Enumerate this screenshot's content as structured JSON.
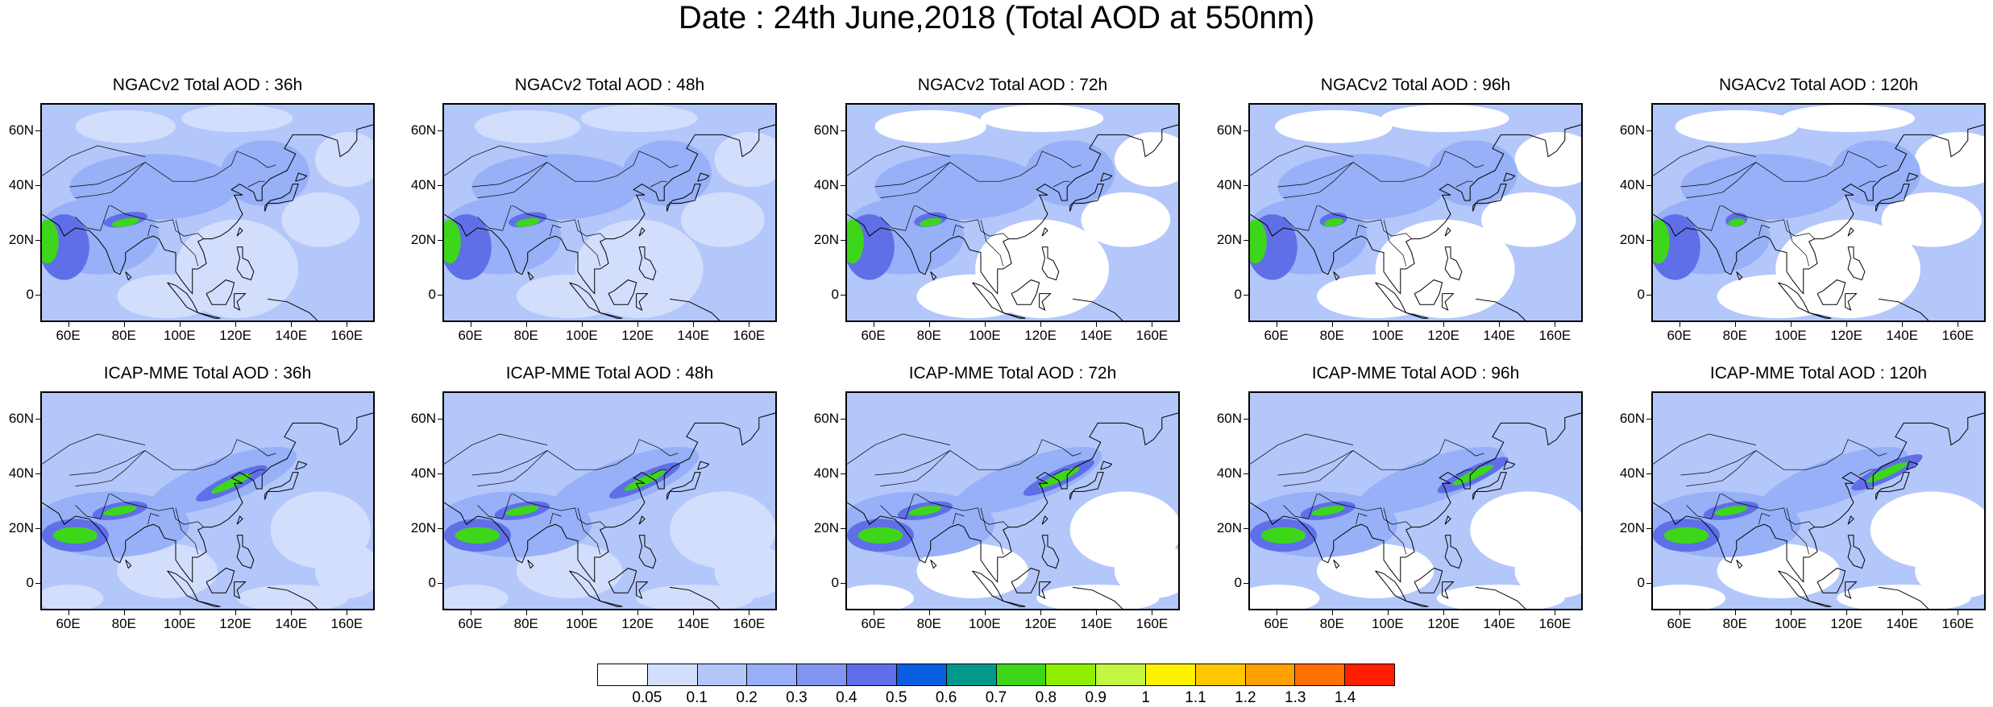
{
  "title": "Date : 24th June,2018 (Total AOD at 550nm)",
  "panels": [
    {
      "title": "NGACv2 Total AOD : 36h",
      "model": "NGACv2",
      "lead": "36h"
    },
    {
      "title": "NGACv2 Total AOD : 48h",
      "model": "NGACv2",
      "lead": "48h"
    },
    {
      "title": "NGACv2 Total AOD : 72h",
      "model": "NGACv2",
      "lead": "72h"
    },
    {
      "title": "NGACv2 Total AOD : 96h",
      "model": "NGACv2",
      "lead": "96h"
    },
    {
      "title": "NGACv2 Total AOD : 120h",
      "model": "NGACv2",
      "lead": "120h"
    },
    {
      "title": "ICAP-MME Total AOD : 36h",
      "model": "ICAP-MME",
      "lead": "36h"
    },
    {
      "title": "ICAP-MME Total AOD : 48h",
      "model": "ICAP-MME",
      "lead": "48h"
    },
    {
      "title": "ICAP-MME Total AOD : 72h",
      "model": "ICAP-MME",
      "lead": "72h"
    },
    {
      "title": "ICAP-MME Total AOD : 96h",
      "model": "ICAP-MME",
      "lead": "96h"
    },
    {
      "title": "ICAP-MME Total AOD : 120h",
      "model": "ICAP-MME",
      "lead": "120h"
    }
  ],
  "map_extent": {
    "lon": [
      50,
      170
    ],
    "lat": [
      -10,
      70
    ]
  },
  "lat_ticks": [
    {
      "value": 60,
      "label": "60N"
    },
    {
      "value": 40,
      "label": "40N"
    },
    {
      "value": 20,
      "label": "20N"
    },
    {
      "value": 0,
      "label": "0"
    }
  ],
  "lon_ticks": [
    {
      "value": 60,
      "label": "60E"
    },
    {
      "value": 80,
      "label": "80E"
    },
    {
      "value": 100,
      "label": "100E"
    },
    {
      "value": 120,
      "label": "120E"
    },
    {
      "value": 140,
      "label": "140E"
    },
    {
      "value": 160,
      "label": "160E"
    }
  ],
  "colorbar": {
    "colors": [
      "#ffffff",
      "#d2defc",
      "#b4c7fa",
      "#97b0f7",
      "#7f95f1",
      "#5f6fe8",
      "#0a5ee0",
      "#00998c",
      "#3ed61a",
      "#8ef000",
      "#c4f542",
      "#fff200",
      "#ffc800",
      "#ffa000",
      "#ff7000",
      "#ff1e00"
    ],
    "labels": [
      "0.05",
      "0.1",
      "0.2",
      "0.3",
      "0.4",
      "0.5",
      "0.6",
      "0.7",
      "0.8",
      "0.9",
      "1",
      "1.1",
      "1.2",
      "1.3",
      "1.4"
    ]
  }
}
